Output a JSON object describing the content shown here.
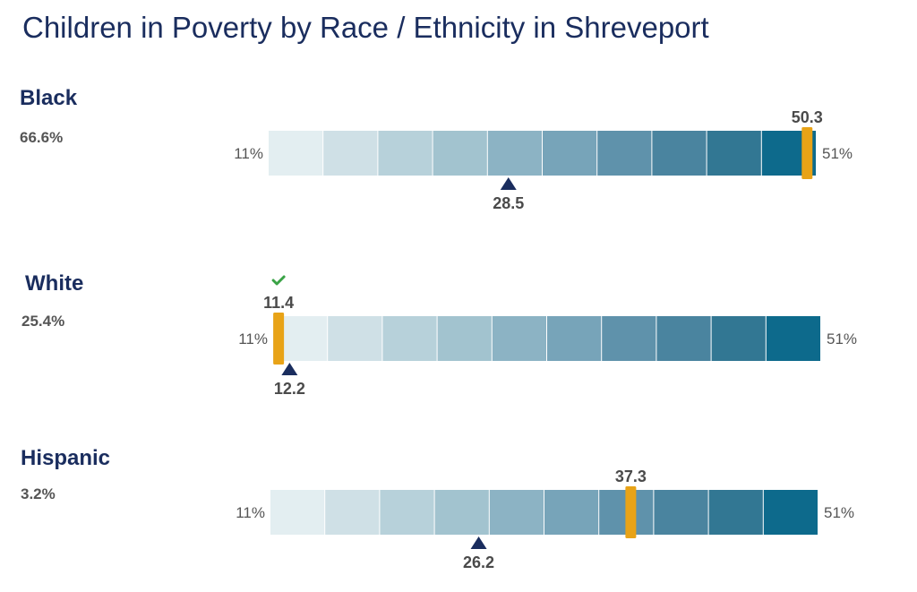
{
  "title": "Children in Poverty by Race / Ethnicity in Shreveport",
  "colors": {
    "title": "#1a2d5e",
    "marker": "#e8a317",
    "benchmark": "#1a2d5e",
    "check": "#3aa346",
    "bins": [
      "#e3eef1",
      "#cfe0e6",
      "#b7d1da",
      "#a2c3cf",
      "#8cb3c4",
      "#77a4b9",
      "#5f92ab",
      "#4a849f",
      "#327793",
      "#0d6a8c"
    ]
  },
  "chart_data": [
    {
      "type": "bar",
      "group": "Black",
      "share": "66.6%",
      "min_label": "11%",
      "max_label": "51%",
      "range": [
        11,
        51
      ],
      "value": 50.3,
      "value_label": "50.3",
      "benchmark": 28.5,
      "benchmark_label": "28.5",
      "good": false
    },
    {
      "type": "bar",
      "group": "White",
      "share": "25.4%",
      "min_label": "11%",
      "max_label": "51%",
      "range": [
        11,
        51
      ],
      "value": 11.4,
      "value_label": "11.4",
      "benchmark": 12.2,
      "benchmark_label": "12.2",
      "good": true
    },
    {
      "type": "bar",
      "group": "Hispanic",
      "share": "3.2%",
      "min_label": "11%",
      "max_label": "51%",
      "range": [
        11,
        51
      ],
      "value": 37.3,
      "value_label": "37.3",
      "benchmark": 26.2,
      "benchmark_label": "26.2",
      "good": false
    }
  ]
}
